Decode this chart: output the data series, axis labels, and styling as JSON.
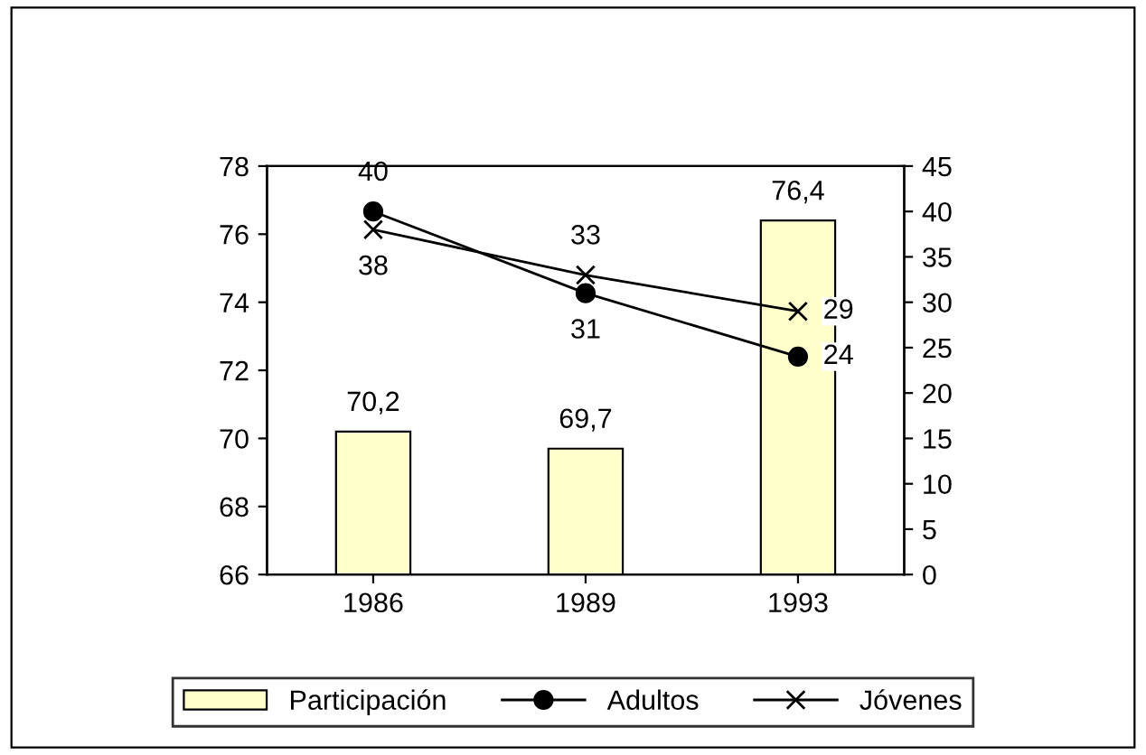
{
  "chart_data": {
    "type": "bar",
    "categories": [
      "1986",
      "1989",
      "1993"
    ],
    "series": [
      {
        "name": "Participación",
        "color": "#ffffcc",
        "values": [
          70.2,
          69.7,
          76.4
        ],
        "value_labels": [
          "70,2",
          "69,7",
          "76,4"
        ]
      },
      {
        "name": "Adultos",
        "type": "line",
        "axis": "y2",
        "color": "#000000",
        "marker": "circle",
        "values": [
          40,
          31,
          24
        ]
      },
      {
        "name": "Jóvenes",
        "type": "line",
        "axis": "y2",
        "color": "#000000",
        "marker": "cross",
        "values": [
          38,
          33,
          29
        ]
      }
    ],
    "data_labels": true,
    "ylim": [
      66,
      78
    ],
    "yticks": [
      66,
      68,
      70,
      72,
      74,
      76,
      78
    ],
    "y2lim": [
      0,
      45
    ],
    "y2ticks": [
      0,
      5,
      10,
      15,
      20,
      25,
      30,
      35,
      40,
      45
    ],
    "grid": false,
    "legend": "bottom"
  }
}
